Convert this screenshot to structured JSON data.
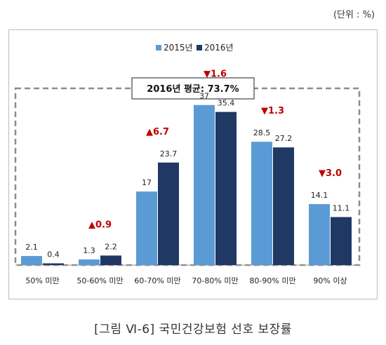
{
  "unit_label": "(단위 : %)",
  "caption": "[그림 Ⅵ-6] 국민건강보험 선호 보장률",
  "average_label": "2016년 평균: 73.7%",
  "colors": {
    "2015": "#5b9bd5",
    "2016": "#1f3864",
    "change": "#c00000"
  },
  "chart_data": {
    "type": "bar",
    "title": "",
    "xlabel": "",
    "ylabel": "",
    "ylim": [
      0,
      40
    ],
    "grid": false,
    "legend": "top-center",
    "categories": [
      "50% 미만",
      "50-60% 미만",
      "60-70% 미만",
      "70-80% 미만",
      "80-90% 미만",
      "90% 이상"
    ],
    "series": [
      {
        "name": "2015년",
        "values": [
          2.1,
          1.3,
          17,
          37,
          28.5,
          14.1
        ]
      },
      {
        "name": "2016년",
        "values": [
          0.4,
          2.2,
          23.7,
          35.4,
          27.2,
          11.1
        ]
      }
    ],
    "value_labels": [
      [
        "2.1",
        "1.3",
        "17",
        "37",
        "28.5",
        "14.1"
      ],
      [
        "0.4",
        "2.2",
        "23.7",
        "35.4",
        "27.2",
        "11.1"
      ]
    ],
    "changes": [
      "",
      "▲0.9",
      "▲6.7",
      "▼1.6",
      "▼1.3",
      "▼3.0"
    ]
  }
}
